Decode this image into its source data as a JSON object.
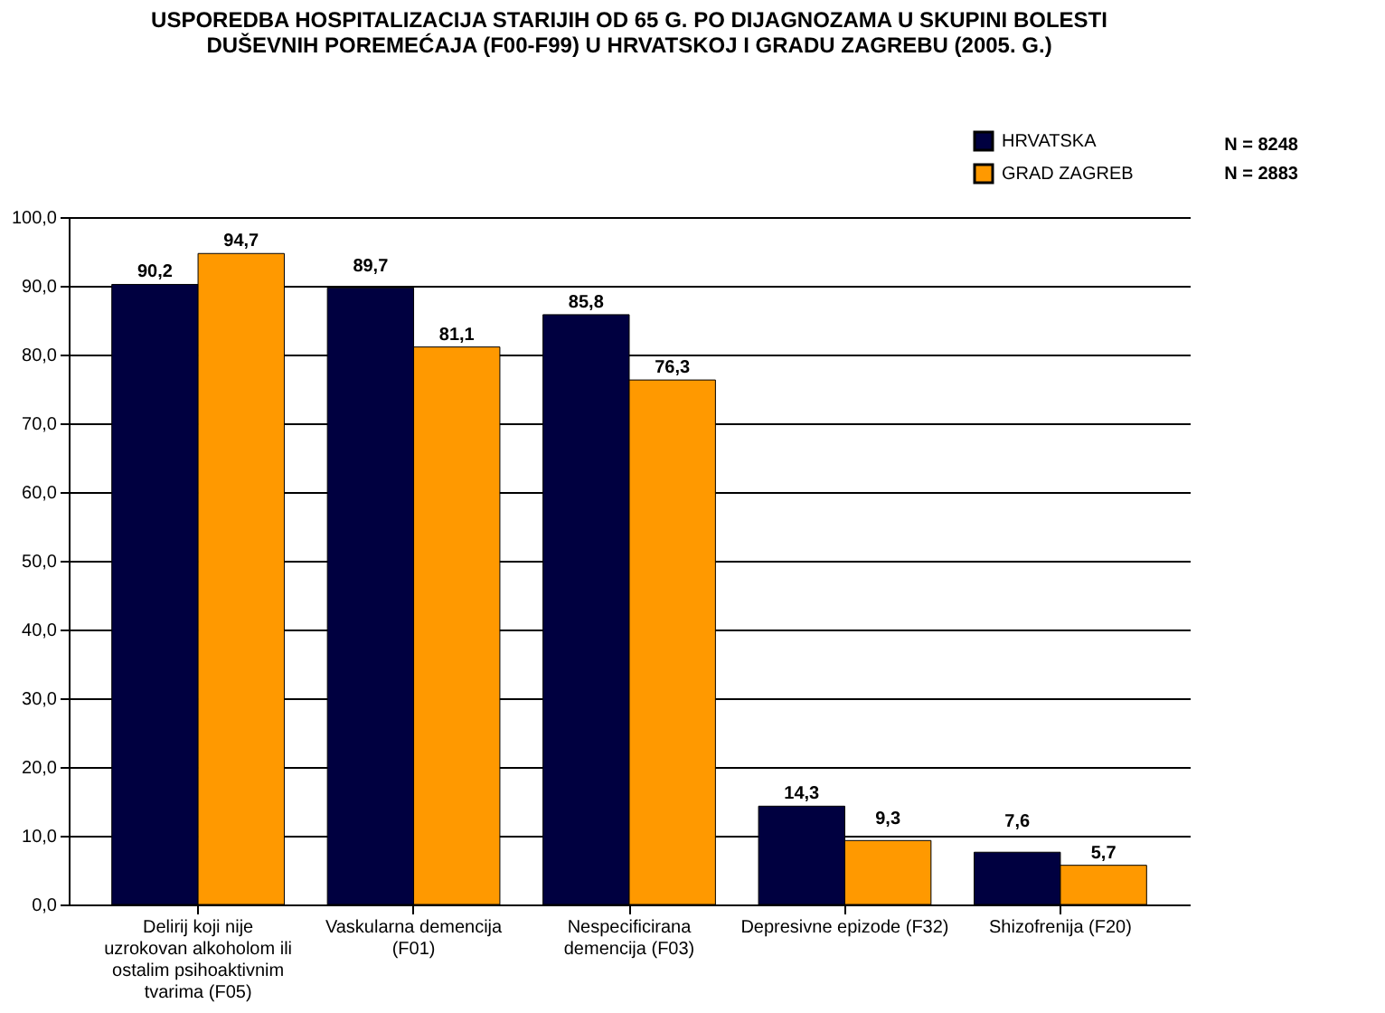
{
  "chart_data": {
    "type": "bar",
    "title": "USPOREDBA HOSPITALIZACIJA STARIJIH OD 65 G. PO DIJAGNOZAMA U SKUPINI BOLESTI\nDUŠEVNIH POREMEĆAJA (F00-F99) U HRVATSKOJ I GRADU ZAGREBU (2005. G.)",
    "categories": [
      "Delirij koji nije uzrokovan alkoholom ili ostalim psihoaktivnim tvarima (F05)",
      "Vaskularna demencija (F01)",
      "Nespecificirana demencija (F03)",
      "Depresivne epizode (F32)",
      "Shizofrenija (F20)"
    ],
    "series": [
      {
        "name": "HRVATSKA",
        "color": "#000040",
        "values": [
          90.2,
          89.7,
          85.8,
          14.3,
          7.6
        ],
        "value_labels": [
          "90,2",
          "89,7",
          "85,8",
          "14,3",
          "7,6"
        ]
      },
      {
        "name": "GRAD ZAGREB",
        "color": "#ff9900",
        "values": [
          94.7,
          81.1,
          76.3,
          9.3,
          5.7
        ],
        "value_labels": [
          "94,7",
          "81,1",
          "76,3",
          "9,3",
          "5,7"
        ]
      }
    ],
    "ylim": [
      0,
      100
    ],
    "yticks": [
      {
        "value": 0,
        "label": "0,0"
      },
      {
        "value": 10,
        "label": "10,0"
      },
      {
        "value": 20,
        "label": "20,0"
      },
      {
        "value": 30,
        "label": "30,0"
      },
      {
        "value": 40,
        "label": "40,0"
      },
      {
        "value": 50,
        "label": "50,0"
      },
      {
        "value": 60,
        "label": "60,0"
      },
      {
        "value": 70,
        "label": "70,0"
      },
      {
        "value": 80,
        "label": "80,0"
      },
      {
        "value": 90,
        "label": "90,0"
      },
      {
        "value": 100,
        "label": "100,0"
      }
    ],
    "grid": "y",
    "legend": "top right",
    "annotations": [
      "N = 8248",
      "N = 2883"
    ]
  }
}
